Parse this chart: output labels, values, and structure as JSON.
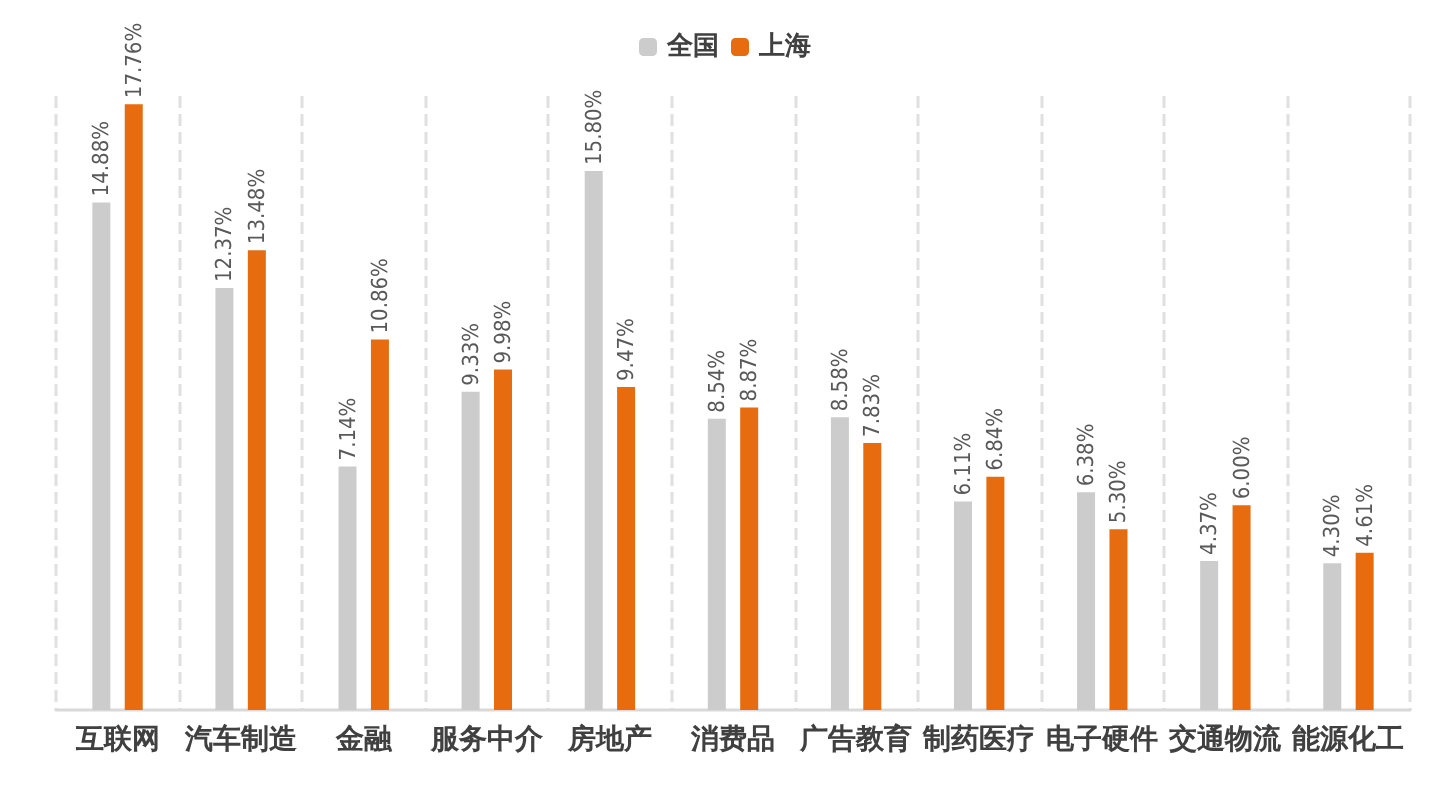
{
  "chart_data": {
    "type": "bar",
    "categories": [
      "互联网",
      "汽车制造",
      "金融",
      "服务中介",
      "房地产",
      "消费品",
      "广告教育",
      "制药医疗",
      "电子硬件",
      "交通物流",
      "能源化工"
    ],
    "series": [
      {
        "name": "全国",
        "color": "#cccccc",
        "values": [
          14.88,
          12.37,
          7.14,
          9.33,
          15.8,
          8.54,
          8.58,
          6.11,
          6.38,
          4.37,
          4.3
        ],
        "value_labels": [
          "14.88%",
          "12.37%",
          "7.14%",
          "9.33%",
          "15.80%",
          "8.54%",
          "8.58%",
          "6.11%",
          "6.38%",
          "4.37%",
          "4.30%"
        ]
      },
      {
        "name": "上海",
        "color": "#e66c0f",
        "values": [
          17.76,
          13.48,
          10.86,
          9.98,
          9.47,
          8.87,
          7.83,
          6.84,
          5.3,
          6.0,
          4.61
        ],
        "value_labels": [
          "17.76%",
          "13.48%",
          "10.86%",
          "9.98%",
          "9.47%",
          "8.87%",
          "7.83%",
          "6.84%",
          "5.30%",
          "6.00%",
          "4.61%"
        ]
      }
    ],
    "legend": "top",
    "grid": "x"
  }
}
